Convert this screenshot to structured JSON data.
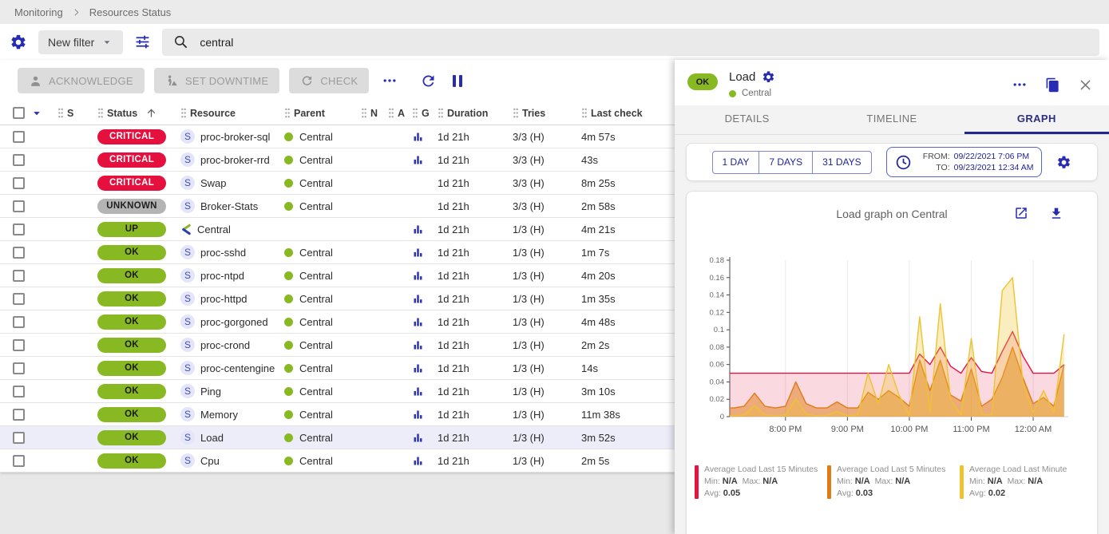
{
  "breadcrumb": {
    "items": [
      "Monitoring",
      "Resources Status"
    ]
  },
  "filter_bar": {
    "new_filter_label": "New filter",
    "search_value": "central"
  },
  "actions": {
    "acknowledge": "ACKNOWLEDGE",
    "set_downtime": "SET DOWNTIME",
    "check": "CHECK"
  },
  "table": {
    "columns": [
      "S",
      "Status",
      "Resource",
      "Parent",
      "N",
      "A",
      "G",
      "Duration",
      "Tries",
      "Last check"
    ],
    "sorted_column": "Status",
    "rows": [
      {
        "status": "CRITICAL",
        "severity": "critical",
        "icon": "service",
        "resource": "proc-broker-sql",
        "parent": "Central",
        "graph": true,
        "duration": "1d 21h",
        "tries": "3/3 (H)",
        "last_check": "4m 57s",
        "selected": false
      },
      {
        "status": "CRITICAL",
        "severity": "critical",
        "icon": "service",
        "resource": "proc-broker-rrd",
        "parent": "Central",
        "graph": true,
        "duration": "1d 21h",
        "tries": "3/3 (H)",
        "last_check": "43s",
        "selected": false
      },
      {
        "status": "CRITICAL",
        "severity": "critical",
        "icon": "service",
        "resource": "Swap",
        "parent": "Central",
        "graph": false,
        "duration": "1d 21h",
        "tries": "3/3 (H)",
        "last_check": "8m 25s",
        "selected": false
      },
      {
        "status": "UNKNOWN",
        "severity": "unknown",
        "icon": "service",
        "resource": "Broker-Stats",
        "parent": "Central",
        "graph": false,
        "duration": "1d 21h",
        "tries": "3/3 (H)",
        "last_check": "2m 58s",
        "selected": false
      },
      {
        "status": "UP",
        "severity": "up",
        "icon": "host",
        "resource": "Central",
        "parent": "",
        "graph": true,
        "duration": "1d 21h",
        "tries": "1/3 (H)",
        "last_check": "4m 21s",
        "selected": false
      },
      {
        "status": "OK",
        "severity": "ok",
        "icon": "service",
        "resource": "proc-sshd",
        "parent": "Central",
        "graph": true,
        "duration": "1d 21h",
        "tries": "1/3 (H)",
        "last_check": "1m 7s",
        "selected": false
      },
      {
        "status": "OK",
        "severity": "ok",
        "icon": "service",
        "resource": "proc-ntpd",
        "parent": "Central",
        "graph": true,
        "duration": "1d 21h",
        "tries": "1/3 (H)",
        "last_check": "4m 20s",
        "selected": false
      },
      {
        "status": "OK",
        "severity": "ok",
        "icon": "service",
        "resource": "proc-httpd",
        "parent": "Central",
        "graph": true,
        "duration": "1d 21h",
        "tries": "1/3 (H)",
        "last_check": "1m 35s",
        "selected": false
      },
      {
        "status": "OK",
        "severity": "ok",
        "icon": "service",
        "resource": "proc-gorgoned",
        "parent": "Central",
        "graph": true,
        "duration": "1d 21h",
        "tries": "1/3 (H)",
        "last_check": "4m 48s",
        "selected": false
      },
      {
        "status": "OK",
        "severity": "ok",
        "icon": "service",
        "resource": "proc-crond",
        "parent": "Central",
        "graph": true,
        "duration": "1d 21h",
        "tries": "1/3 (H)",
        "last_check": "2m 2s",
        "selected": false
      },
      {
        "status": "OK",
        "severity": "ok",
        "icon": "service",
        "resource": "proc-centengine",
        "parent": "Central",
        "graph": true,
        "duration": "1d 21h",
        "tries": "1/3 (H)",
        "last_check": "14s",
        "selected": false
      },
      {
        "status": "OK",
        "severity": "ok",
        "icon": "service",
        "resource": "Ping",
        "parent": "Central",
        "graph": true,
        "duration": "1d 21h",
        "tries": "1/3 (H)",
        "last_check": "3m 10s",
        "selected": false
      },
      {
        "status": "OK",
        "severity": "ok",
        "icon": "service",
        "resource": "Memory",
        "parent": "Central",
        "graph": true,
        "duration": "1d 21h",
        "tries": "1/3 (H)",
        "last_check": "11m 38s",
        "selected": false
      },
      {
        "status": "OK",
        "severity": "ok",
        "icon": "service",
        "resource": "Load",
        "parent": "Central",
        "graph": true,
        "duration": "1d 21h",
        "tries": "1/3 (H)",
        "last_check": "3m 52s",
        "selected": true
      },
      {
        "status": "OK",
        "severity": "ok",
        "icon": "service",
        "resource": "Cpu",
        "parent": "Central",
        "graph": true,
        "duration": "1d 21h",
        "tries": "1/3 (H)",
        "last_check": "2m 5s",
        "selected": false
      }
    ]
  },
  "panel": {
    "status": "OK",
    "title": "Load",
    "parent": "Central",
    "tabs": [
      "DETAILS",
      "TIMELINE",
      "GRAPH"
    ],
    "active_tab": "GRAPH",
    "time_buttons": [
      "1 DAY",
      "7 DAYS",
      "31 DAYS"
    ],
    "from_label": "FROM:",
    "from_value": "09/22/2021 7:06 PM",
    "to_label": "TO:",
    "to_value": "09/23/2021 12:34 AM",
    "graph_title": "Load graph on Central",
    "legend_labels": {
      "min": "Min:",
      "max": "Max:",
      "avg": "Avg:"
    }
  },
  "chart_data": {
    "type": "area",
    "title": "Load graph on Central",
    "xlabel": "",
    "ylabel": "",
    "ylim": [
      0,
      0.18
    ],
    "grid": "vertical",
    "legend_position": "bottom",
    "x_start": "7:06 PM",
    "x_end": "12:34 AM",
    "x_range_minutes": [
      0,
      328
    ],
    "x_tick_labels": [
      "8:00 PM",
      "9:00 PM",
      "10:00 PM",
      "11:00 PM",
      "12:00 AM"
    ],
    "x_tick_minutes": [
      54,
      114,
      174,
      234,
      294
    ],
    "y_tick_labels": [
      "0",
      "0.02",
      "0.04",
      "0.06",
      "0.08",
      "0.1",
      "0.12",
      "0.14",
      "0.16",
      "0.18"
    ],
    "x_minutes": [
      4,
      14,
      24,
      34,
      44,
      54,
      64,
      74,
      84,
      94,
      104,
      114,
      124,
      134,
      144,
      154,
      164,
      174,
      184,
      194,
      204,
      214,
      224,
      234,
      244,
      254,
      264,
      274,
      284,
      294,
      304,
      314,
      324
    ],
    "series": [
      {
        "name": "Average Load Last 15 Minutes",
        "color": "#e8133d",
        "fill": "rgba(232,19,61,0.16)",
        "min": "N/A",
        "max": "N/A",
        "avg": "0.05",
        "values": [
          0.05,
          0.05,
          0.05,
          0.05,
          0.05,
          0.05,
          0.05,
          0.05,
          0.05,
          0.05,
          0.05,
          0.05,
          0.05,
          0.05,
          0.05,
          0.05,
          0.05,
          0.05,
          0.072,
          0.06,
          0.08,
          0.058,
          0.05,
          0.068,
          0.052,
          0.05,
          0.075,
          0.098,
          0.07,
          0.05,
          0.05,
          0.05,
          0.06
        ]
      },
      {
        "name": "Average Load Last 5 Minutes",
        "color": "#e07b16",
        "fill": "rgba(224,123,22,0.5)",
        "min": "N/A",
        "max": "N/A",
        "avg": "0.03",
        "values": [
          0.01,
          0.012,
          0.027,
          0.012,
          0.01,
          0.012,
          0.04,
          0.015,
          0.01,
          0.01,
          0.017,
          0.01,
          0.01,
          0.028,
          0.02,
          0.03,
          0.022,
          0.012,
          0.065,
          0.03,
          0.065,
          0.025,
          0.018,
          0.055,
          0.012,
          0.02,
          0.045,
          0.08,
          0.045,
          0.015,
          0.022,
          0.012,
          0.06
        ]
      },
      {
        "name": "Average Load Last Minute",
        "color": "#edc32f",
        "fill": "rgba(237,195,47,0.3)",
        "min": "N/A",
        "max": "N/A",
        "avg": "0.02",
        "values": [
          0.001,
          0.002,
          0.013,
          0.002,
          0.001,
          0.002,
          0.021,
          0.003,
          0.001,
          0.001,
          0.006,
          0.001,
          0.002,
          0.05,
          0.015,
          0.06,
          0.025,
          0.002,
          0.115,
          0.005,
          0.13,
          0.02,
          0.002,
          0.09,
          0.003,
          0.002,
          0.145,
          0.16,
          0.04,
          0.005,
          0.03,
          0.005,
          0.095
        ]
      }
    ]
  }
}
